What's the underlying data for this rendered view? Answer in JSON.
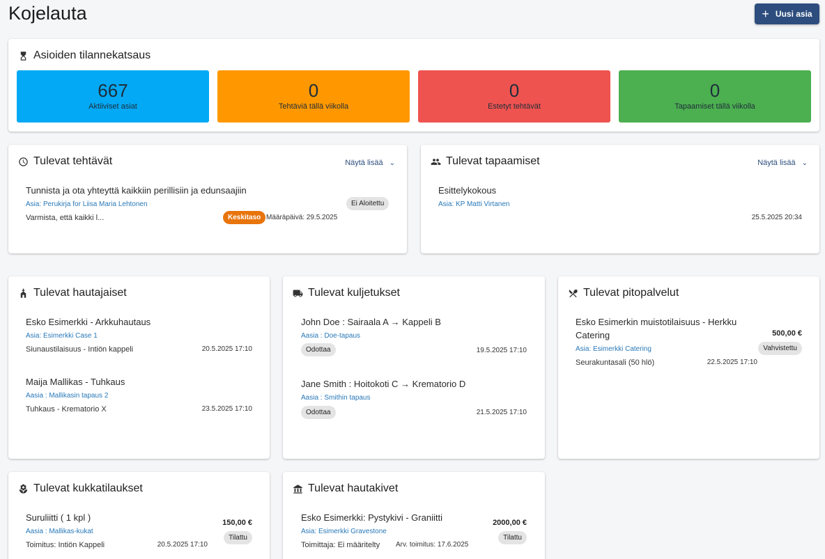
{
  "header": {
    "title": "Kojelauta",
    "new_button": "Uusi asia"
  },
  "overview": {
    "title": "Asioiden tilannekatsaus",
    "stats": [
      {
        "value": "667",
        "label": "Aktiiviset asiat",
        "color": "#03a9f4"
      },
      {
        "value": "0",
        "label": "Tehtäviä tällä viikolla",
        "color": "#ff9800"
      },
      {
        "value": "0",
        "label": "Estetyt tehtävät",
        "color": "#ef5350"
      },
      {
        "value": "0",
        "label": "Tapaamiset tällä viikolla",
        "color": "#4caf50"
      }
    ]
  },
  "tasks": {
    "title": "Tulevat tehtävät",
    "show_more": "Näytä lisää",
    "items": [
      {
        "title": "Tunnista ja ota yhteyttä kaikkiin perillisiin ja edunsaajiin",
        "case": "Asia: Perukirja for Liisa Maria Lehtonen",
        "status": "Ei Aloitettu",
        "desc": "Varmista, että kaikki l...",
        "priority": "Keskitaso",
        "due": "Määräpäivä: 29.5.2025"
      }
    ]
  },
  "meetings": {
    "title": "Tulevat tapaamiset",
    "show_more": "Näytä lisää",
    "items": [
      {
        "title": "Esittelykokous",
        "case": "Asia: KP Matti Virtanen",
        "datetime": "25.5.2025 20:34"
      }
    ]
  },
  "funerals": {
    "title": "Tulevat hautajaiset",
    "items": [
      {
        "title": "Esko Esimerkki - Arkkuhautaus",
        "case": "Asia: Esimerkki Case 1",
        "place": "Siunaustilaisuus - Intiön kappeli",
        "datetime": "20.5.2025 17:10"
      },
      {
        "title": "Maija Mallikas - Tuhkaus",
        "case": "Aasia : Mallikasin tapaus 2",
        "place": "Tuhkaus - Krematorio X",
        "datetime": "23.5.2025 17:10"
      }
    ]
  },
  "transports": {
    "title": "Tulevat kuljetukset",
    "items": [
      {
        "title": "John Doe : Sairaala A → Kappeli B",
        "case": "Aasia : Doe-tapaus",
        "status": "Odottaa",
        "datetime": "19.5.2025 17:10"
      },
      {
        "title": "Jane Smith : Hoitokoti C → Krematorio D",
        "case": "Aasia : Smithin tapaus",
        "status": "Odottaa",
        "datetime": "21.5.2025 17:10"
      }
    ]
  },
  "catering": {
    "title": "Tulevat pitopalvelut",
    "items": [
      {
        "title_line1": "Esko Esimerkin muistotilaisuus - Herkku",
        "title_line2": "Catering",
        "price": "500,00 €",
        "case": "Asia: Esimerkki Catering",
        "status": "Vahvistettu",
        "place": "Seurakuntasali (50 hlö)",
        "datetime": "22.5.2025 17:10"
      }
    ]
  },
  "flowers": {
    "title": "Tulevat kukkatilaukset",
    "items": [
      {
        "title": "Suruliitti ( 1 kpl )",
        "price": "150,00 €",
        "case": "Aasia : Mallikas-kukat",
        "status": "Tilattu",
        "delivery": "Toimitus: Intiön Kappeli",
        "datetime": "20.5.2025 17:10"
      }
    ]
  },
  "headstones": {
    "title": "Tulevat hautakivet",
    "items": [
      {
        "title": "Esko Esimerkki: Pystykivi - Graniitti",
        "price": "2000,00 €",
        "case": "Asia: Esimerkki Gravestone",
        "status": "Tilattu",
        "supplier": "Toimittaja: Ei määritelty",
        "estimate": "Arv. toimitus: 17.6.2025"
      }
    ]
  }
}
